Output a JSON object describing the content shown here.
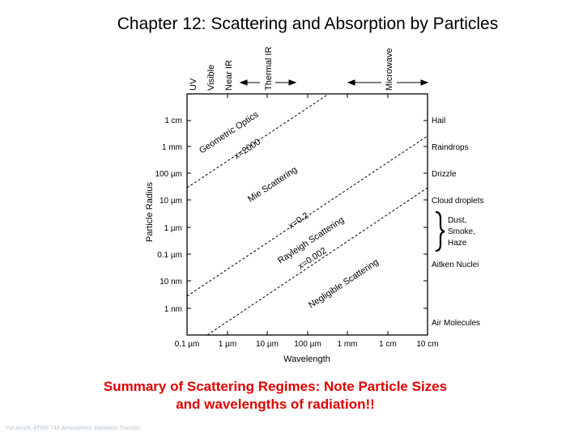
{
  "title": "Chapter 12: Scattering and Absorption by Particles",
  "diagram": {
    "top_labels": [
      "UV",
      "Visible",
      "Near IR",
      "Thermal IR",
      "Microwave"
    ],
    "y_axis_label": "Particle Radius",
    "x_axis_label": "Wavelength",
    "y_ticks": [
      "1 cm",
      "1 mm",
      "100 µm",
      "10 µm",
      "1 µm",
      "0.1 µm",
      "10 nm",
      "1 nm"
    ],
    "x_ticks": [
      "0.1 µm",
      "1 µm",
      "10 µm",
      "100 µm",
      "1 mm",
      "1 cm",
      "10 cm"
    ],
    "right_labels": {
      "hail": "Hail",
      "raindrops": "Raindrops",
      "drizzle": "Drizzle",
      "cloud_droplets": "Cloud droplets",
      "dust": "Dust,",
      "smoke": "Smoke,",
      "haze": "Haze",
      "aitken_nuclei": "Aitken Nuclei",
      "air_molecules": "Air Molecules"
    },
    "regimes": {
      "geometric_optics": "Geometric Optics",
      "x_2000": "x=2000",
      "mie": "Mie Scattering",
      "x_0_2": "x=0.2",
      "rayleigh": "Rayleigh Scattering",
      "x_0_002": "x=0.002",
      "negligible": "Negligible Scattering"
    }
  },
  "caption": {
    "line1": "Summary of Scattering Regimes: Note Particle Sizes",
    "line2": "and wavelengths of radiation!!"
  },
  "footer": "Pat Arnott, ATMS 749 Atmospheric Radiation Transfer"
}
